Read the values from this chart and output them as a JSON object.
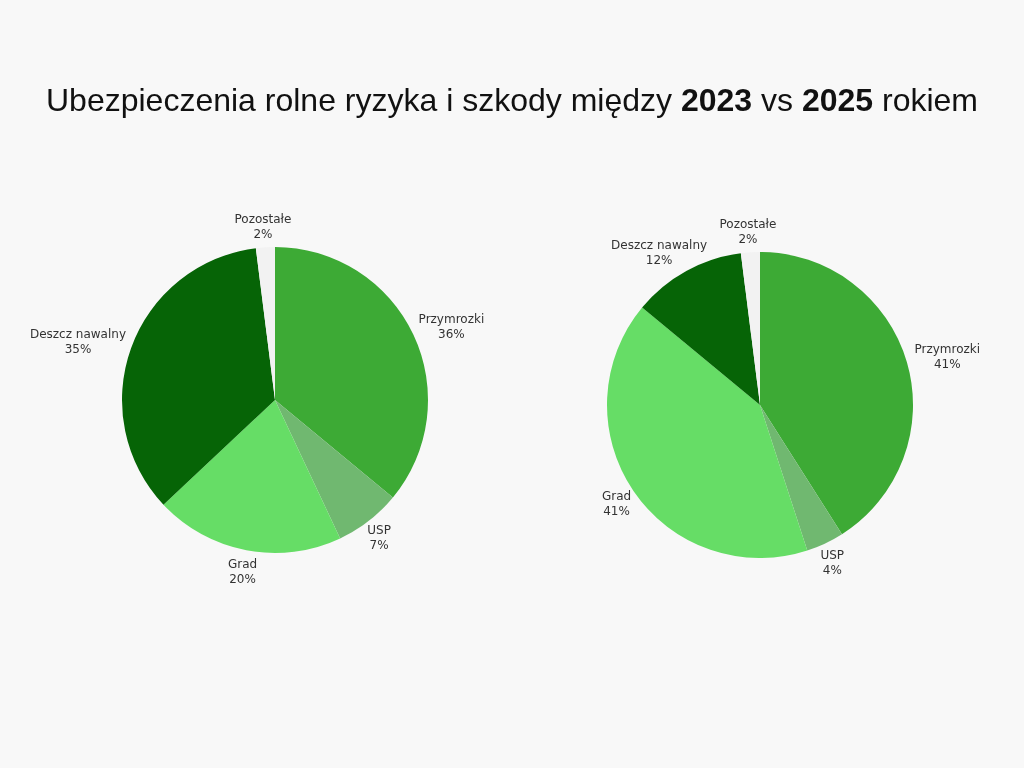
{
  "chart_data": [
    {
      "type": "pie",
      "title": "Ubezpieczenia rolne ryzyka i szkody między 2023 vs 2025 rokiem",
      "categories": [
        "Przymrozki",
        "USP",
        "Grad",
        "Deszcz nawalny",
        "Pozostałe"
      ],
      "values": [
        36,
        7,
        20,
        35,
        2
      ],
      "colors": [
        "#3daa35",
        "#70b870",
        "#66dd66",
        "#066406",
        "#f2f2f2"
      ],
      "value_labels": [
        "36%",
        "7%",
        "20%",
        "35%",
        "2%"
      ]
    },
    {
      "type": "pie",
      "categories": [
        "Przymrozki",
        "USP",
        "Grad",
        "Deszcz nawalny",
        "Pozostałe"
      ],
      "values": [
        41,
        4,
        41,
        12,
        2
      ],
      "colors": [
        "#3daa35",
        "#70b870",
        "#66dd66",
        "#066406",
        "#f2f2f2"
      ],
      "value_labels": [
        "41%",
        "4%",
        "41%",
        "12%",
        "2%"
      ]
    }
  ]
}
